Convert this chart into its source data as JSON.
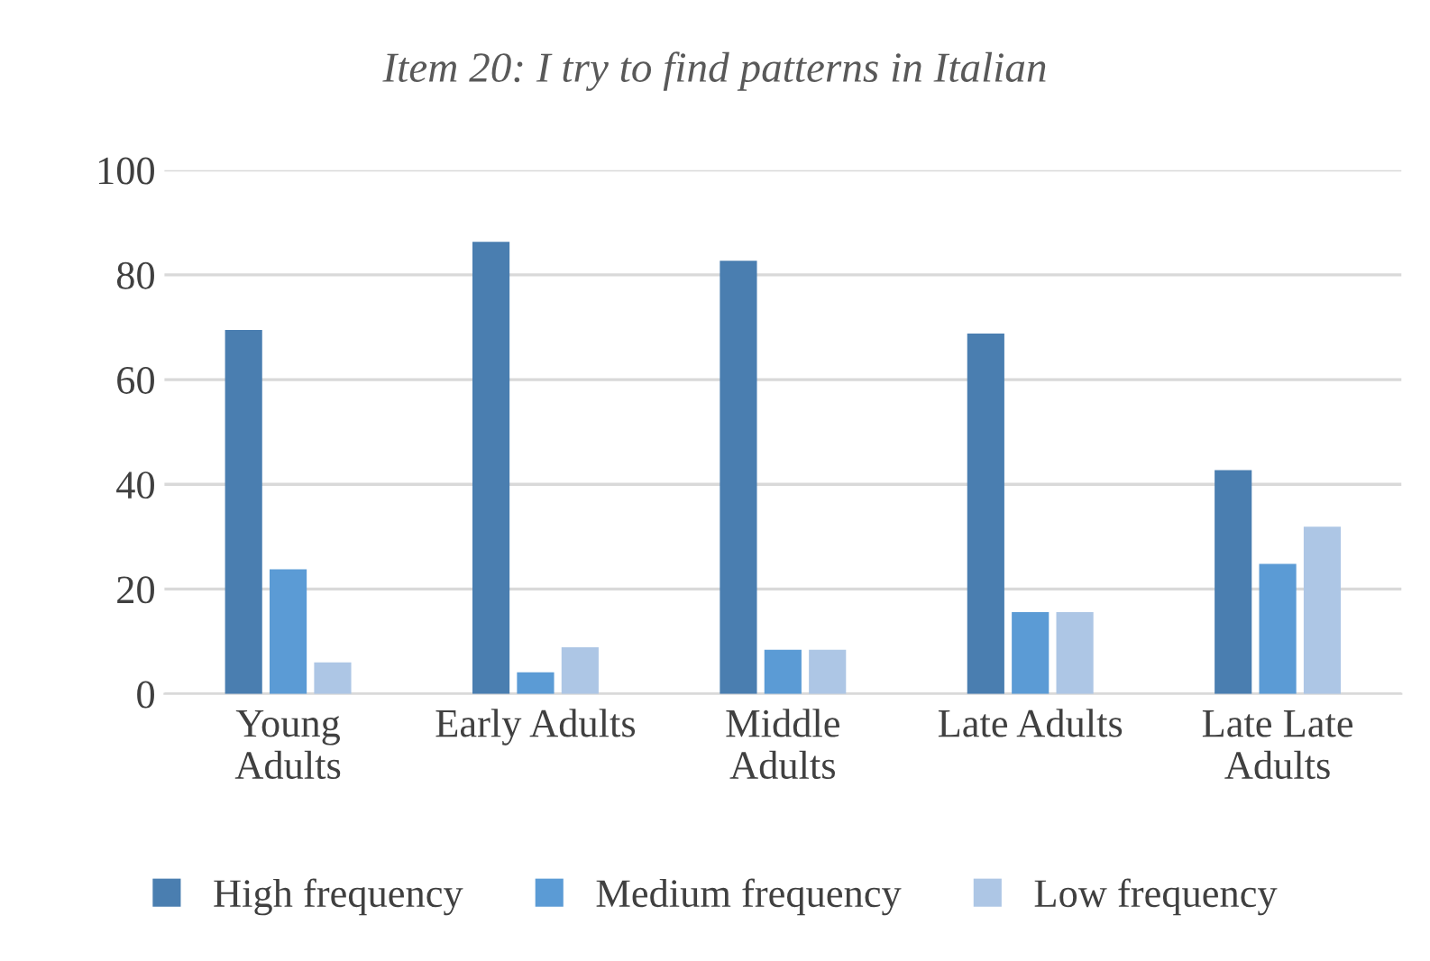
{
  "chart_data": {
    "type": "bar",
    "title": "Item 20: I try to find patterns in Italian",
    "categories": [
      "Young\nAdults",
      "Early Adults",
      "Middle\nAdults",
      "Late Adults",
      "Late Late\nAdults"
    ],
    "series": [
      {
        "name": "High frequency",
        "color": "#4a7eb0",
        "values": [
          69.5,
          86.3,
          82.7,
          68.8,
          42.7
        ]
      },
      {
        "name": "Medium frequency",
        "color": "#5b9bd5",
        "values": [
          23.8,
          4.1,
          8.4,
          15.6,
          24.8
        ]
      },
      {
        "name": "Low frequency",
        "color": "#adc6e5",
        "values": [
          6.0,
          8.9,
          8.4,
          15.6,
          31.9
        ]
      }
    ],
    "ylim": [
      0,
      100
    ],
    "yticks": [
      0,
      20,
      40,
      60,
      80,
      100
    ],
    "grid": "y",
    "legend": "bottom"
  }
}
